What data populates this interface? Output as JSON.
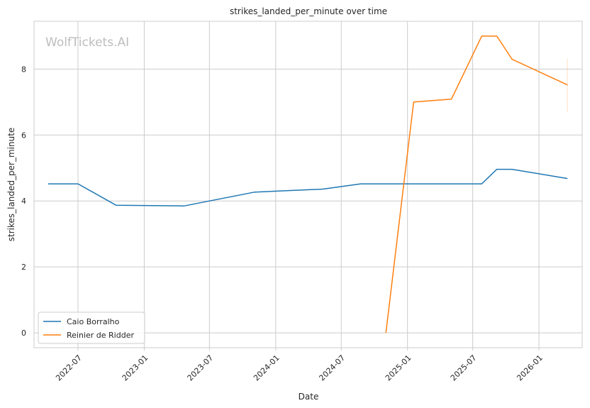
{
  "chart_data": {
    "type": "line",
    "title": "strikes_landed_per_minute over time",
    "xlabel": "Date",
    "ylabel": "strikes_landed_per_minute",
    "watermark": "WolfTickets.AI",
    "xlim": [
      "2022-03-01",
      "2026-05-01"
    ],
    "ylim": [
      -0.45,
      9.45
    ],
    "x_ticks": [
      "2022-07-01",
      "2023-01-01",
      "2023-07-01",
      "2024-01-01",
      "2024-07-01",
      "2025-01-01",
      "2025-07-01",
      "2026-01-01"
    ],
    "x_tick_labels": [
      "2022-07",
      "2023-01",
      "2023-07",
      "2024-01",
      "2024-07",
      "2025-01",
      "2025-07",
      "2026-01"
    ],
    "y_ticks": [
      0,
      2,
      4,
      6,
      8
    ],
    "y_tick_labels": [
      "0",
      "2",
      "4",
      "6",
      "8"
    ],
    "grid": true,
    "legend_position": "lower-left",
    "series": [
      {
        "name": "Caio Borralho",
        "color": "#1f77b4",
        "points": [
          {
            "x": "2022-04-09",
            "y": 4.52
          },
          {
            "x": "2022-07-01",
            "y": 4.52
          },
          {
            "x": "2022-10-15",
            "y": 3.87
          },
          {
            "x": "2023-04-22",
            "y": 3.85
          },
          {
            "x": "2023-11-04",
            "y": 4.27
          },
          {
            "x": "2024-05-11",
            "y": 4.36
          },
          {
            "x": "2024-08-24",
            "y": 4.52
          },
          {
            "x": "2025-07-26",
            "y": 4.52
          },
          {
            "x": "2025-09-06",
            "y": 4.96
          },
          {
            "x": "2025-10-18",
            "y": 4.96
          },
          {
            "x": "2026-03-21",
            "y": 4.68
          }
        ]
      },
      {
        "name": "Reinier de Ridder",
        "color": "#ff7f0e",
        "points": [
          {
            "x": "2024-11-02",
            "y": 0.0
          },
          {
            "x": "2025-01-18",
            "y": 7.0
          },
          {
            "x": "2025-05-03",
            "y": 7.09
          },
          {
            "x": "2025-07-26",
            "y": 9.0
          },
          {
            "x": "2025-09-06",
            "y": 9.0
          },
          {
            "x": "2025-10-18",
            "y": 8.3
          },
          {
            "x": "2026-03-21",
            "y": 7.52
          }
        ],
        "error_bar": {
          "x": "2026-03-21",
          "low": 6.7,
          "high": 8.32
        }
      }
    ]
  }
}
